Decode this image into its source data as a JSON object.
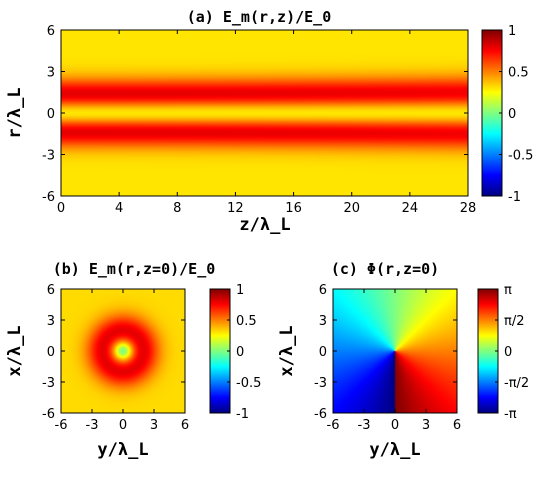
{
  "chart_data": [
    {
      "type": "heatmap",
      "title": "(a) E_m(r,z)/E_0",
      "xlabel": "z/λ_L",
      "ylabel": "r/λ_L",
      "xlim": [
        0,
        28
      ],
      "ylim": [
        -6,
        6
      ],
      "xticks": [
        "0",
        "4",
        "8",
        "12",
        "16",
        "20",
        "24",
        "28"
      ],
      "yticks": [
        "6",
        "3",
        "0",
        "-3",
        "-6"
      ],
      "colorbar": {
        "range": [
          -1,
          1
        ],
        "ticks": [
          "1",
          "0.5",
          "0",
          "-0.5",
          "-1"
        ]
      },
      "field": "two ridges of value ≈0.8 near r = ±2 λ_L at z = 0, slowly broadening with z; ≈0.3 on axis and at |r| = 6"
    },
    {
      "type": "heatmap",
      "title": "(b) E_m(r,z=0)/E_0",
      "xlabel": "y/λ_L",
      "ylabel": "x/λ_L",
      "xlim": [
        -6,
        6
      ],
      "ylim": [
        -6,
        6
      ],
      "xticks": [
        "-6",
        "-3",
        "0",
        "3",
        "6"
      ],
      "yticks": [
        "6",
        "3",
        "0",
        "-3",
        "-6"
      ],
      "colorbar": {
        "range": [
          -1,
          1
        ],
        "ticks": [
          "1",
          "0.5",
          "0",
          "-0.5",
          "-1"
        ]
      },
      "field": "doughnut: ring maximum ≈0.8 at radius ≈2 λ_L, ≈0 at centre"
    },
    {
      "type": "heatmap",
      "title": "(c) Φ(r,z=0)",
      "xlabel": "y/λ_L",
      "ylabel": "x/λ_L",
      "xlim": [
        -6,
        6
      ],
      "ylim": [
        -6,
        6
      ],
      "xticks": [
        "-6",
        "-3",
        "0",
        "3",
        "6"
      ],
      "yticks": [
        "6",
        "3",
        "0",
        "-3",
        "-6"
      ],
      "colorbar": {
        "range": [
          "-π",
          "π"
        ],
        "ticks": [
          "π",
          "π/2",
          "0",
          "-π/2",
          "-π"
        ]
      },
      "field": "azimuthal phase spiral, 2π jump along the negative y axis"
    }
  ]
}
